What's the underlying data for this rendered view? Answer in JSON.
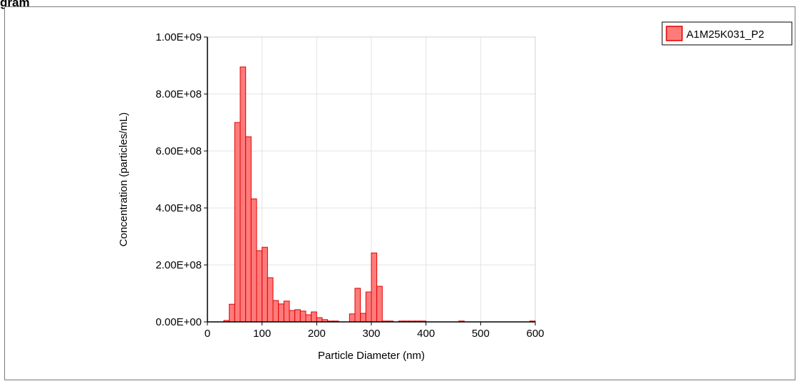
{
  "heading": "gram",
  "chart_data": {
    "type": "bar",
    "xlabel": "Particle Diameter (nm)",
    "ylabel": "Concentration (particles/mL)",
    "xlim": [
      0,
      600
    ],
    "ylim": [
      0,
      1000000000
    ],
    "x_ticks": [
      0,
      100,
      200,
      300,
      400,
      500,
      600
    ],
    "y_ticks": [
      0,
      200000000,
      400000000,
      600000000,
      800000000,
      1000000000
    ],
    "y_tick_labels": [
      "0.00E+00",
      "2.00E+08",
      "4.00E+08",
      "6.00E+08",
      "8.00E+08",
      "1.00E+09"
    ],
    "grid": true,
    "legend_position": "top-right",
    "bin_width": 10,
    "series": [
      {
        "name": "A1M25K031_P2",
        "color": "#ff7b7b",
        "edge_color": "#e00000",
        "bin_centers": [
          35,
          45,
          55,
          65,
          75,
          85,
          95,
          105,
          115,
          125,
          135,
          145,
          155,
          165,
          175,
          185,
          195,
          205,
          215,
          225,
          235,
          245,
          255,
          265,
          275,
          285,
          295,
          305,
          315,
          325,
          335,
          345,
          355,
          365,
          375,
          385,
          395,
          405,
          415,
          425,
          435,
          445,
          455,
          465,
          475,
          485,
          495,
          505,
          515,
          525,
          535,
          545,
          555,
          565,
          575,
          585,
          595
        ],
        "values": [
          5000000,
          62000000,
          700000000,
          895000000,
          650000000,
          432000000,
          250000000,
          262000000,
          155000000,
          75000000,
          63000000,
          73000000,
          40000000,
          43000000,
          38000000,
          25000000,
          35000000,
          15000000,
          8000000,
          3000000,
          3000000,
          0,
          0,
          28000000,
          118000000,
          30000000,
          105000000,
          242000000,
          125000000,
          3000000,
          3000000,
          0,
          3000000,
          3000000,
          3000000,
          3000000,
          3000000,
          0,
          0,
          0,
          0,
          0,
          0,
          3000000,
          0,
          0,
          0,
          0,
          0,
          0,
          0,
          0,
          0,
          0,
          0,
          0,
          3000000
        ]
      }
    ]
  }
}
